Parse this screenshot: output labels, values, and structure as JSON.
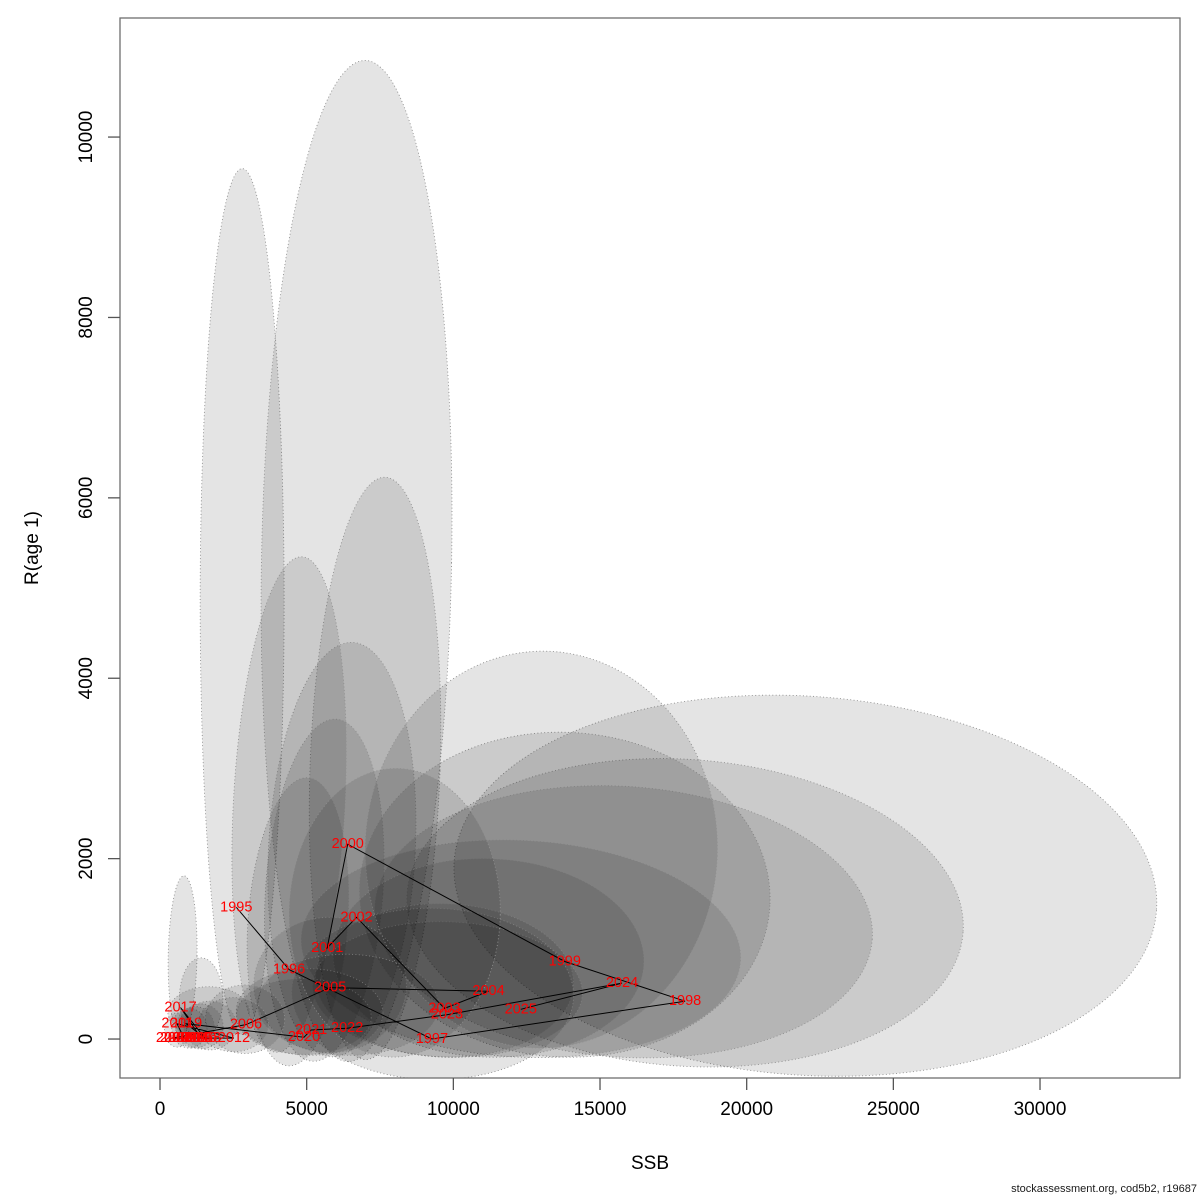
{
  "chart_data": {
    "type": "scatter",
    "title": "",
    "xlabel": "SSB",
    "ylabel": "R(age 1)",
    "footer": "stockassessment.org, cod5b2, r19687",
    "xlim": [
      -1364,
      34772
    ],
    "ylim": [
      -432,
      11320
    ],
    "x_ticks": [
      0,
      5000,
      10000,
      15000,
      20000,
      25000,
      30000
    ],
    "y_ticks": [
      0,
      2000,
      4000,
      6000,
      8000,
      10000
    ],
    "grid": false,
    "legend": "none",
    "label_color": "#FF0000",
    "line_color": "#000000",
    "ellipse_fill_alpha": 0.105,
    "ellipse_stroke": "#8f8f8f",
    "points": [
      {
        "year": "1995",
        "ssb": 2600,
        "r": 1460
      },
      {
        "year": "1996",
        "ssb": 4400,
        "r": 770
      },
      {
        "year": "1997",
        "ssb": 9270,
        "r": 0
      },
      {
        "year": "1998",
        "ssb": 17900,
        "r": 420
      },
      {
        "year": "1999",
        "ssb": 13800,
        "r": 860
      },
      {
        "year": "2000",
        "ssb": 6400,
        "r": 2160
      },
      {
        "year": "2001",
        "ssb": 5700,
        "r": 1010
      },
      {
        "year": "2002",
        "ssb": 6700,
        "r": 1350
      },
      {
        "year": "2003",
        "ssb": 9700,
        "r": 340
      },
      {
        "year": "2004",
        "ssb": 11200,
        "r": 530
      },
      {
        "year": "2005",
        "ssb": 5800,
        "r": 570
      },
      {
        "year": "2006",
        "ssb": 2930,
        "r": 160
      },
      {
        "year": "2007",
        "ssb": 410,
        "r": 10
      },
      {
        "year": "2008",
        "ssb": 545,
        "r": 10
      },
      {
        "year": "2009",
        "ssb": 680,
        "r": 10
      },
      {
        "year": "2010",
        "ssb": 820,
        "r": 10
      },
      {
        "year": "2011",
        "ssb": 580,
        "r": 170
      },
      {
        "year": "2012",
        "ssb": 2520,
        "r": 10
      },
      {
        "year": "2013",
        "ssb": 990,
        "r": 10
      },
      {
        "year": "2014",
        "ssb": 1130,
        "r": 10
      },
      {
        "year": "2015",
        "ssb": 1260,
        "r": 10
      },
      {
        "year": "2016",
        "ssb": 1400,
        "r": 10
      },
      {
        "year": "2017",
        "ssb": 700,
        "r": 350
      },
      {
        "year": "2018",
        "ssb": 1530,
        "r": 10
      },
      {
        "year": "2019",
        "ssb": 890,
        "r": 170
      },
      {
        "year": "2020",
        "ssb": 4910,
        "r": 20
      },
      {
        "year": "2021",
        "ssb": 5150,
        "r": 100
      },
      {
        "year": "2022",
        "ssb": 6380,
        "r": 120
      },
      {
        "year": "2023",
        "ssb": 9780,
        "r": 270
      },
      {
        "year": "2024",
        "ssb": 15750,
        "r": 620
      },
      {
        "year": "2025",
        "ssb": 12300,
        "r": 330
      }
    ],
    "ellipses": [
      {
        "cx": 2800,
        "cy": 4850,
        "rx": 1430,
        "ry": 4800,
        "tilt": 0
      },
      {
        "cx": 6700,
        "cy": 5300,
        "rx": 3240,
        "ry": 5550,
        "tilt": 1
      },
      {
        "cx": 7330,
        "cy": 3000,
        "rx": 2216,
        "ry": 3230,
        "tilt": 2
      },
      {
        "cx": 6200,
        "cy": 2100,
        "rx": 2500,
        "ry": 2300,
        "tilt": 3
      },
      {
        "cx": 5600,
        "cy": 1650,
        "rx": 2000,
        "ry": 1900,
        "tilt": 4
      },
      {
        "cx": 4700,
        "cy": 1300,
        "rx": 1700,
        "ry": 1600,
        "tilt": 4
      },
      {
        "cx": 4400,
        "cy": 2600,
        "rx": 1900,
        "ry": 2750,
        "tilt": 3
      },
      {
        "cx": 770,
        "cy": 920,
        "rx": 490,
        "ry": 890,
        "tilt": 1
      },
      {
        "cx": 1400,
        "cy": 450,
        "rx": 740,
        "ry": 450,
        "tilt": 0
      },
      {
        "cx": 22000,
        "cy": 1700,
        "rx": 12000,
        "ry": 2100,
        "tilt": 4
      },
      {
        "cx": 17900,
        "cy": 1400,
        "rx": 9500,
        "ry": 1700,
        "tilt": 4
      },
      {
        "cx": 13800,
        "cy": 1600,
        "rx": 7000,
        "ry": 1800,
        "tilt": 3
      },
      {
        "cx": 15800,
        "cy": 1300,
        "rx": 8500,
        "ry": 1500,
        "tilt": 4
      },
      {
        "cx": 12300,
        "cy": 1000,
        "rx": 7500,
        "ry": 1200,
        "tilt": 3
      },
      {
        "cx": 11200,
        "cy": 900,
        "rx": 5300,
        "ry": 1100,
        "tilt": 2
      },
      {
        "cx": 9700,
        "cy": 650,
        "rx": 4400,
        "ry": 850,
        "tilt": 2
      },
      {
        "cx": 9800,
        "cy": 550,
        "rx": 4600,
        "ry": 750,
        "tilt": 2
      },
      {
        "cx": 9300,
        "cy": 500,
        "rx": 4800,
        "ry": 950,
        "tilt": 1
      },
      {
        "cx": 5800,
        "cy": 600,
        "rx": 2600,
        "ry": 750,
        "tilt": 1
      },
      {
        "cx": 4900,
        "cy": 250,
        "rx": 2300,
        "ry": 420,
        "tilt": 1
      },
      {
        "cx": 5100,
        "cy": 300,
        "rx": 2500,
        "ry": 480,
        "tilt": 1
      },
      {
        "cx": 6400,
        "cy": 380,
        "rx": 3100,
        "ry": 560,
        "tilt": 1
      },
      {
        "cx": 2900,
        "cy": 220,
        "rx": 1350,
        "ry": 380,
        "tilt": 0
      },
      {
        "cx": 2500,
        "cy": 160,
        "rx": 1200,
        "ry": 300,
        "tilt": 0
      },
      {
        "cx": 1000,
        "cy": 120,
        "rx": 600,
        "ry": 220,
        "tilt": 0
      },
      {
        "cx": 1200,
        "cy": 130,
        "rx": 650,
        "ry": 230,
        "tilt": 0
      },
      {
        "cx": 1400,
        "cy": 140,
        "rx": 750,
        "ry": 250,
        "tilt": 0
      },
      {
        "cx": 1700,
        "cy": 150,
        "rx": 900,
        "ry": 270,
        "tilt": 0
      },
      {
        "cx": 600,
        "cy": 100,
        "rx": 450,
        "ry": 190,
        "tilt": 0
      },
      {
        "cx": 1670,
        "cy": 290,
        "rx": 1400,
        "ry": 290,
        "tilt": 0
      },
      {
        "cx": 13000,
        "cy": 2100,
        "rx": 6000,
        "ry": 2200,
        "tilt": 2
      },
      {
        "cx": 8000,
        "cy": 1400,
        "rx": 3600,
        "ry": 1600,
        "tilt": 1
      }
    ]
  }
}
